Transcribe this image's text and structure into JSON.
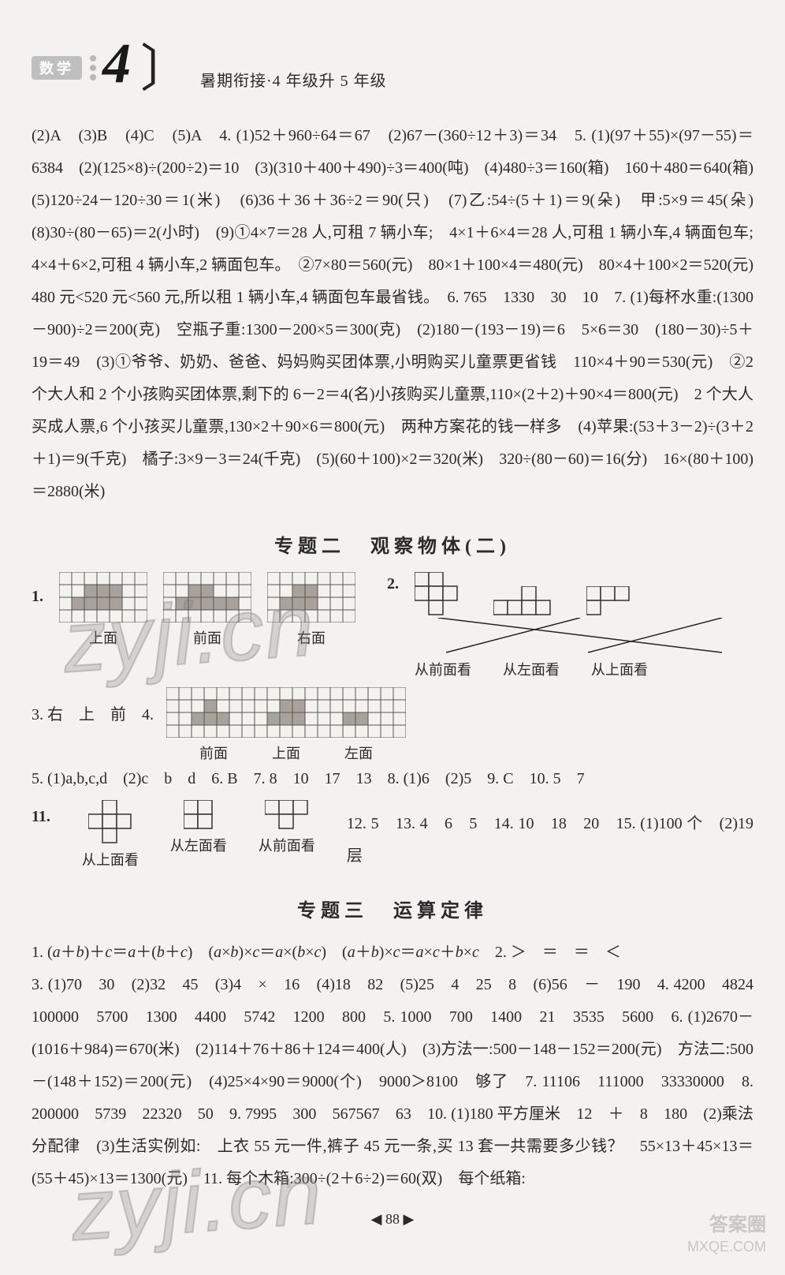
{
  "header": {
    "subject_tag": "数学",
    "grade_numeral": "4",
    "subtitle": "暑期衔接·4 年级升 5 年级"
  },
  "para1": "(2)A　(3)B　(4)C　(5)A　4. (1)52＋960÷64＝67　(2)67－(360÷12＋3)＝34　5. (1)(97＋55)×(97－55)＝6384　(2)(125×8)÷(200÷2)＝10　(3)(310＋400＋490)÷3＝400(吨)　(4)480÷3＝160(箱)　160＋480＝640(箱)　(5)120÷24－120÷30＝1(米)　(6)36＋36＋36÷2＝90(只)　(7)乙:54÷(5＋1)＝9(朵)　甲:5×9＝45(朵)　(8)30÷(80－65)＝2(小时)　(9)①4×7＝28 人,可租 7 辆小车;　4×1＋6×4＝28 人,可租 1 辆小车,4 辆面包车;　4×4＋6×2,可租 4 辆小车,2 辆面包车。　②7×80＝560(元)　80×1＋100×4＝480(元)　80×4＋100×2＝520(元)　480 元<520 元<560 元,所以租 1 辆小车,4 辆面包车最省钱。　6. 765　1330　30　10　7. (1)每杯水重:(1300－900)÷2＝200(克)　空瓶子重:1300－200×5＝300(克)　(2)180－(193－19)＝6　5×6＝30　(180－30)÷5＋19＝49　(3)①爷爷、奶奶、爸爸、妈妈购买团体票,小明购买儿童票更省钱　110×4＋90＝530(元)　②2 个大人和 2 个小孩购买团体票,剩下的 6－2＝4(名)小孩购买儿童票,110×(2＋2)＋90×4＝800(元)　2 个大人买成人票,6 个小孩买儿童票,130×2＋90×6＝800(元)　两种方案花的钱一样多　(4)苹果:(53＋3－2)÷(3＋2＋1)＝9(千克)　橘子:3×9－3＝24(千克)　(5)(60＋100)×2＝320(米)　320÷(80－60)＝16(分)　16×(80＋100)＝2880(米)",
  "section2": {
    "label_a": "专题二",
    "label_b": "观察物体(二)"
  },
  "q1": {
    "num": "1.",
    "labels": [
      "上面",
      "前面",
      "右面"
    ],
    "grid": {
      "cols": 7,
      "rows": 4,
      "cell": 16
    },
    "fill_A": [
      [
        2,
        1
      ],
      [
        3,
        1
      ],
      [
        4,
        1
      ],
      [
        1,
        2
      ],
      [
        2,
        2
      ],
      [
        3,
        2
      ],
      [
        4,
        2
      ]
    ],
    "fill_B": [
      [
        2,
        1
      ],
      [
        3,
        1
      ],
      [
        1,
        2
      ],
      [
        2,
        2
      ],
      [
        3,
        2
      ],
      [
        4,
        2
      ],
      [
        5,
        2
      ]
    ],
    "fill_C": [
      [
        2,
        1
      ],
      [
        3,
        1
      ],
      [
        1,
        2
      ],
      [
        2,
        2
      ],
      [
        3,
        2
      ]
    ]
  },
  "q2": {
    "num": "2.",
    "shape_A": {
      "cell": 18,
      "cells": [
        [
          0,
          0
        ],
        [
          1,
          0
        ],
        [
          0,
          1
        ],
        [
          1,
          1
        ],
        [
          2,
          1
        ],
        [
          1,
          2
        ]
      ]
    },
    "shape_B": {
      "cell": 18,
      "cells": [
        [
          2,
          0
        ],
        [
          0,
          1
        ],
        [
          1,
          1
        ],
        [
          2,
          1
        ],
        [
          3,
          1
        ]
      ]
    },
    "shape_C": {
      "cell": 18,
      "cells": [
        [
          0,
          0
        ],
        [
          1,
          0
        ],
        [
          2,
          0
        ],
        [
          0,
          1
        ]
      ]
    },
    "labels": [
      "从前面看",
      "从左面看",
      "从上面看"
    ],
    "lines": [
      [
        30,
        0,
        390,
        44
      ],
      [
        210,
        0,
        40,
        44
      ],
      [
        390,
        0,
        220,
        44
      ]
    ]
  },
  "q3": {
    "prefix": "3. 右　上　前　4.",
    "grid": {
      "cols": 19,
      "rows": 4,
      "cell": 16
    },
    "fill": [
      [
        3,
        1
      ],
      [
        9,
        1
      ],
      [
        10,
        1
      ],
      [
        2,
        2
      ],
      [
        3,
        2
      ],
      [
        4,
        2
      ],
      [
        8,
        2
      ],
      [
        9,
        2
      ],
      [
        10,
        2
      ],
      [
        14,
        2
      ],
      [
        15,
        2
      ]
    ],
    "labels": [
      "前面",
      "上面",
      "左面"
    ]
  },
  "para_q5_10": "5. (1)a,b,c,d　(2)c　b　d　6. B　7. 8　10　17　13　8. (1)6　(2)5　9. C　10. 5　7",
  "q11": {
    "num": "11.",
    "rest": "12. 5　13. 4　6　5　14. 10　18　20　15. (1)100 个　(2)19 层",
    "shape_A": {
      "cell": 18,
      "cells": [
        [
          1,
          0
        ],
        [
          0,
          1
        ],
        [
          1,
          1
        ],
        [
          2,
          1
        ],
        [
          1,
          2
        ]
      ]
    },
    "shape_B": {
      "cell": 18,
      "cells": [
        [
          0,
          0
        ],
        [
          1,
          0
        ],
        [
          0,
          1
        ],
        [
          1,
          1
        ]
      ]
    },
    "shape_C": {
      "cell": 18,
      "cells": [
        [
          0,
          0
        ],
        [
          1,
          0
        ],
        [
          2,
          0
        ],
        [
          1,
          1
        ]
      ]
    },
    "labels": [
      "从上面看",
      "从左面看",
      "从前面看"
    ]
  },
  "section3": {
    "label_a": "专题三",
    "label_b": "运算定律"
  },
  "s3_line1_a": "1. (",
  "s3_line1_b": ")＋",
  "s3_line1_c": "＝",
  "s3_line1_d": "＋(",
  "s3_line1_e": ")　(",
  "s3_line1_f": ")×",
  "s3_line1_g": "×(",
  "s3_line1_h": ")　(",
  "s3_line1_i": ")×",
  "s3_line1_j": "×",
  "s3_line1_k": "＋",
  "s3_line1_l": "×",
  "s3_line1_m": "　2. ＞　＝　＝　＜",
  "s3_rest": "3. (1)70　30　(2)32　45　(3)4　×　16　(4)18　82　(5)25　4　25　8　(6)56　－　190　4. 4200　4824　100000　5700　1300　4400　5742　1200　800　5. 1000　700　1400　21　3535　5600　6. (1)2670－(1016＋984)＝670(米)　(2)114＋76＋86＋124＝400(人)　(3)方法一:500－148－152＝200(元)　方法二:500－(148＋152)＝200(元)　(4)25×4×90＝9000(个)　9000＞8100　够了　7. 11106　111000　33330000　8. 200000　5739　22320　50　9. 7995　300　567567　63　10. (1)180 平方厘米　12　＋　8　180　(2)乘法分配律　(3)生活实例如:　上衣 55 元一件,裤子 45 元一条,买 13 套一共需要多少钱？　55×13＋45×13＝(55＋45)×13＝1300(元)　11. 每个木箱:300÷(2＋6÷2)＝60(双)　每个纸箱:",
  "watermark": "zyji.cn",
  "corner": {
    "line1": "答案圈",
    "line2": "MXQE.COM"
  },
  "pagenum": "◀ 88 ▶",
  "colors": {
    "page_bg": "#f4f2ef",
    "text": "#2a2a2a",
    "grid_stroke": "#555555",
    "grid_fill": "#a8a29a",
    "watermark": "rgba(130,130,130,0.28)",
    "tag_bg": "#bfbfbf"
  }
}
